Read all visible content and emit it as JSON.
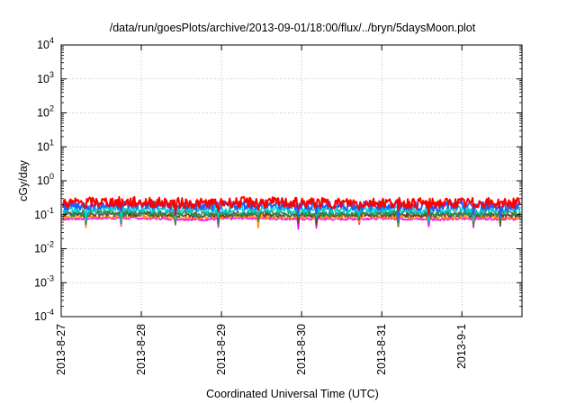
{
  "chart_data": {
    "type": "line",
    "title": "/data/run/goesPlots/archive/2013-09-01/18:00/flux/../bryn/5daysMoon.plot",
    "xlabel": "Coordinated Universal Time (UTC)",
    "ylabel": "cGy/day",
    "yscale": "log",
    "ylim": [
      0.0001,
      10000
    ],
    "xlim": [
      "2013-08-27",
      "2013-09-01 18:00"
    ],
    "grid": true,
    "legend": "none",
    "x_tick_labels": [
      "2013-8-27",
      "2013-8-28",
      "2013-8-29",
      "2013-8-30",
      "2013-8-31",
      "2013-9-1"
    ],
    "y_ticks": [
      {
        "base": "10",
        "exp": "-4"
      },
      {
        "base": "10",
        "exp": "-3"
      },
      {
        "base": "10",
        "exp": "-2"
      },
      {
        "base": "10",
        "exp": "-1"
      },
      {
        "base": "10",
        "exp": "0"
      },
      {
        "base": "10",
        "exp": "1"
      },
      {
        "base": "10",
        "exp": "2"
      },
      {
        "base": "10",
        "exp": "3"
      },
      {
        "base": "10",
        "exp": "4"
      }
    ],
    "series": [
      {
        "color": "#ff00ff",
        "values": [
          0.075,
          0.08,
          0.078,
          0.072,
          0.08,
          0.076,
          0.074,
          0.079,
          0.073,
          0.077,
          0.075
        ]
      },
      {
        "color": "#ff8c00",
        "values": [
          0.085,
          0.09,
          0.088,
          0.084,
          0.089,
          0.086,
          0.085,
          0.088,
          0.084,
          0.087,
          0.086
        ]
      },
      {
        "color": "#6b4226",
        "values": [
          0.1,
          0.105,
          0.103,
          0.098,
          0.104,
          0.1,
          0.099,
          0.103,
          0.098,
          0.101,
          0.1
        ]
      },
      {
        "color": "#2e8b57",
        "values": [
          0.11,
          0.115,
          0.112,
          0.108,
          0.114,
          0.11,
          0.109,
          0.113,
          0.108,
          0.111,
          0.11
        ]
      },
      {
        "color": "#00ced1",
        "values": [
          0.14,
          0.15,
          0.145,
          0.138,
          0.148,
          0.142,
          0.14,
          0.146,
          0.138,
          0.143,
          0.14
        ]
      },
      {
        "color": "#1e5fff",
        "values": [
          0.18,
          0.2,
          0.19,
          0.175,
          0.195,
          0.185,
          0.18,
          0.19,
          0.175,
          0.185,
          0.18
        ]
      },
      {
        "color": "#ff0000",
        "values": [
          0.22,
          0.24,
          0.23,
          0.215,
          0.235,
          0.225,
          0.22,
          0.23,
          0.215,
          0.225,
          0.22
        ]
      }
    ]
  }
}
